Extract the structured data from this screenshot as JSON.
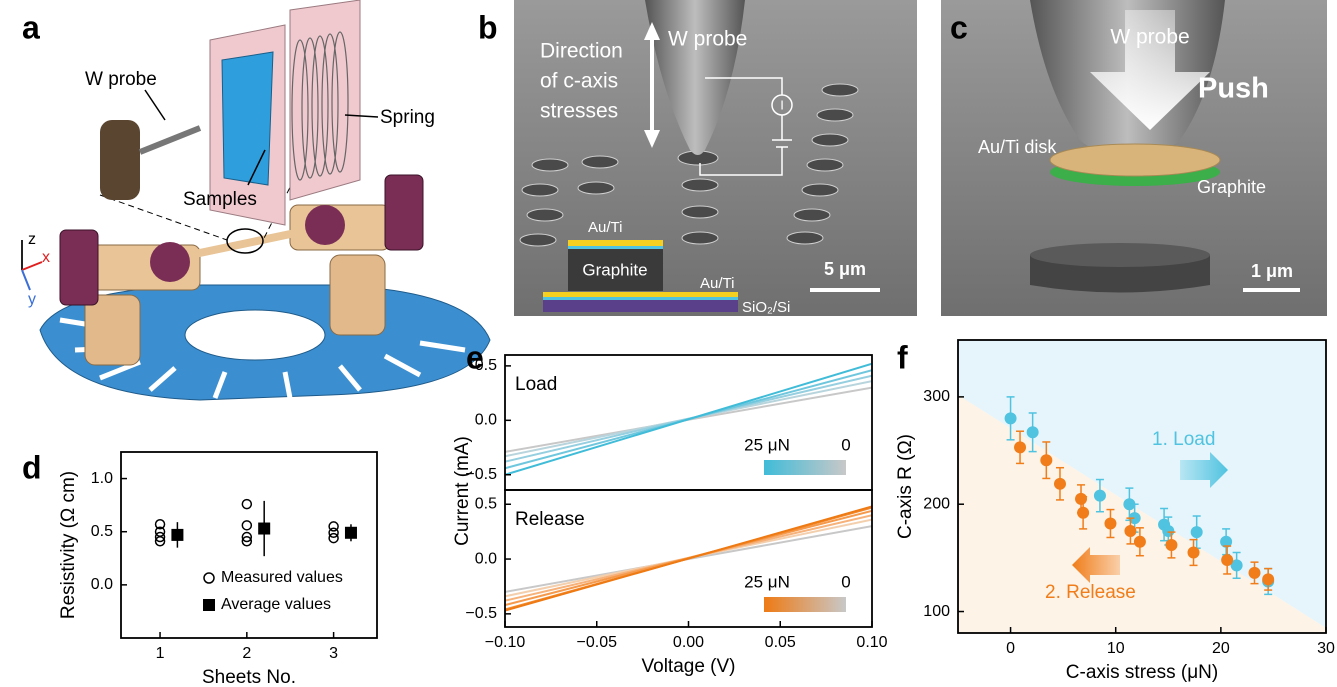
{
  "panel_labels": [
    "a",
    "b",
    "c",
    "d",
    "e",
    "f"
  ],
  "panel_a": {
    "probe_label": "W probe",
    "spring_label": "Spring",
    "samples_label": "Samples",
    "axes": [
      "z",
      "x",
      "y"
    ]
  },
  "panel_b": {
    "direction_lines": [
      "Direction",
      "of c-axis",
      "stresses"
    ],
    "probe_label": "W probe",
    "current_symbol": "I",
    "stack_labels": [
      "Au/Ti",
      "Graphite",
      "Au/Ti",
      "SiO₂/Si"
    ],
    "scale_bar": "5 μm"
  },
  "panel_c": {
    "probe_label": "W probe",
    "push_label": "Push",
    "disk_label": "Au/Ti disk",
    "graphite_label": "Graphite",
    "scale_bar": "1 μm"
  },
  "chart_data": [
    {
      "type": "scatter",
      "ylabel": "Resistivity (Ω cm)",
      "xlabel": "Sheets No.",
      "xlim": [
        0.55,
        3.5
      ],
      "ylim": [
        -0.5,
        1.25
      ],
      "xticks": [
        1,
        2,
        3
      ],
      "yticks": [
        {
          "value": 0,
          "label": "0.0"
        },
        {
          "value": 0.5,
          "label": "0.5"
        },
        {
          "value": 1,
          "label": "1.0"
        }
      ],
      "legend": "lower right",
      "series": [
        {
          "name": "Measured values",
          "color": "#000000",
          "marker": "open-circle",
          "x": [
            1,
            1,
            1,
            1,
            2,
            2,
            2,
            2,
            3,
            3,
            3
          ],
          "values": [
            0.57,
            0.5,
            0.45,
            0.41,
            0.76,
            0.56,
            0.45,
            0.41,
            0.55,
            0.49,
            0.44
          ]
        },
        {
          "name": "Average values",
          "color": "#000000",
          "marker": "filled-square",
          "x": [
            1.2,
            2.2,
            3.2
          ],
          "values": [
            0.47,
            0.53,
            0.49
          ],
          "errors": [
            0.12,
            0.26,
            0.08
          ]
        }
      ]
    },
    {
      "type": "line",
      "annotation": "Load",
      "ylabel": "Current (mA)",
      "colorbar_labels": [
        "25 μN",
        "0"
      ],
      "colorbar_colors": [
        "#40bcd8",
        "#c8c8c8"
      ],
      "x": [
        -0.1,
        0.1
      ],
      "xlim": [
        -0.1,
        0.1
      ],
      "ylim": [
        -0.64,
        0.6
      ],
      "yticks": [
        {
          "value": -0.5,
          "label": "−0.5"
        },
        {
          "value": 0,
          "label": "0.0"
        },
        {
          "value": 0.5,
          "label": "0.5"
        }
      ],
      "series": [
        {
          "color": "#c8c8c8",
          "values": [
            -0.29,
            0.3
          ]
        },
        {
          "color": "#b8d4dc",
          "values": [
            -0.33,
            0.36
          ]
        },
        {
          "color": "#95cfe0",
          "values": [
            -0.38,
            0.41
          ]
        },
        {
          "color": "#6fc7de",
          "values": [
            -0.44,
            0.46
          ]
        },
        {
          "color": "#40bcd8",
          "values": [
            -0.5,
            0.52
          ]
        }
      ]
    },
    {
      "type": "line",
      "annotation": "Release",
      "xlabel": "Voltage (V)",
      "colorbar_labels": [
        "25 μN",
        "0"
      ],
      "colorbar_colors": [
        "#ee7a14",
        "#c8c8c8"
      ],
      "x": [
        -0.1,
        0.1
      ],
      "xlim": [
        -0.1,
        0.1
      ],
      "ylim": [
        -0.62,
        0.63
      ],
      "xticks": [
        {
          "value": -0.1,
          "label": "−0.10"
        },
        {
          "value": -0.05,
          "label": "−0.05"
        },
        {
          "value": 0,
          "label": "0.00"
        },
        {
          "value": 0.05,
          "label": "0.05"
        },
        {
          "value": 0.1,
          "label": "0.10"
        }
      ],
      "yticks": [
        {
          "value": -0.5,
          "label": "−0.5"
        },
        {
          "value": 0,
          "label": "0.0"
        },
        {
          "value": 0.5,
          "label": "0.5"
        }
      ],
      "series": [
        {
          "color": "#c8c8c8",
          "values": [
            -0.3,
            0.3
          ]
        },
        {
          "color": "#f3cfae",
          "values": [
            -0.34,
            0.36
          ]
        },
        {
          "color": "#f6b27a",
          "values": [
            -0.38,
            0.4
          ]
        },
        {
          "color": "#f59a4c",
          "values": [
            -0.42,
            0.44
          ]
        },
        {
          "color": "#f28a2e",
          "values": [
            -0.46,
            0.47
          ]
        },
        {
          "color": "#ee7a14",
          "values": [
            -0.47,
            0.48
          ]
        }
      ]
    },
    {
      "type": "errorscatter",
      "xlabel": "C-axis stress (μN)",
      "ylabel": "C-axis R (Ω)",
      "xlim": [
        -5,
        30
      ],
      "ylim": [
        80,
        353
      ],
      "xticks": [
        0,
        10,
        20,
        30
      ],
      "yticks": [
        100,
        200,
        300
      ],
      "series": [
        {
          "name": "1. Load",
          "color": "#4fc3e0",
          "x": [
            0,
            2.1,
            8.5,
            11.3,
            11.8,
            14.6,
            15.0,
            17.7,
            20.5,
            21.5,
            24.5
          ],
          "values": [
            280,
            267,
            208,
            200,
            187,
            181,
            175,
            174,
            165,
            143,
            128
          ],
          "errors": [
            20,
            18,
            15,
            15,
            13,
            15,
            13,
            15,
            12,
            12,
            12
          ]
        },
        {
          "name": "2. Release",
          "color": "#f07d1a",
          "x": [
            0.9,
            3.4,
            4.7,
            6.7,
            6.9,
            9.5,
            11.4,
            12.3,
            15.3,
            17.4,
            20.6,
            23.2,
            24.5
          ],
          "values": [
            253,
            241,
            219,
            205,
            192,
            182,
            175,
            165,
            162,
            155,
            148,
            136,
            130
          ],
          "errors": [
            15,
            17,
            15,
            13,
            15,
            13,
            12,
            13,
            12,
            12,
            13,
            10,
            10
          ]
        }
      ]
    }
  ]
}
